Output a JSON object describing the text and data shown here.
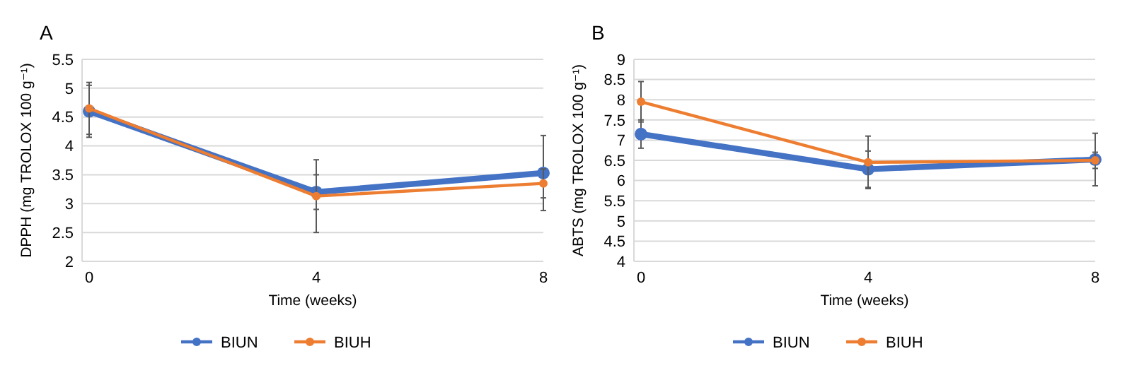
{
  "chart_data": [
    {
      "type": "line",
      "title": "A",
      "xlabel": "Time (weeks)",
      "ylabel": "DPPH (mg TROLOX 100 g⁻¹)",
      "categories": [
        "0",
        "4",
        "8"
      ],
      "ylim": [
        2,
        5.5
      ],
      "yticks": [
        2,
        2.5,
        3,
        3.5,
        4,
        4.5,
        5,
        5.5
      ],
      "grid": "y",
      "legend": "bottom",
      "marker": "circle",
      "series": [
        {
          "name": "BIUN",
          "color": "#4472c4",
          "values": [
            4.6,
            3.2,
            3.53
          ],
          "errors": [
            0.45,
            0.3,
            0.65
          ]
        },
        {
          "name": "BIUH",
          "color": "#ed7d31",
          "values": [
            4.65,
            3.13,
            3.35
          ],
          "errors": [
            0.45,
            0.63,
            0.25
          ]
        }
      ]
    },
    {
      "type": "line",
      "title": "B",
      "xlabel": "Time (weeks)",
      "ylabel": "ABTS (mg TROLOX 100 g⁻¹)",
      "categories": [
        "0",
        "4",
        "8"
      ],
      "ylim": [
        4,
        9
      ],
      "yticks": [
        4,
        4.5,
        5,
        5.5,
        6,
        6.5,
        7,
        7.5,
        8,
        8.5,
        9
      ],
      "grid": "y",
      "legend": "bottom",
      "marker": "circle",
      "series": [
        {
          "name": "BIUN",
          "color": "#4472c4",
          "values": [
            7.15,
            6.28,
            6.52
          ],
          "errors": [
            0.35,
            0.45,
            0.65
          ]
        },
        {
          "name": "BIUH",
          "color": "#ed7d31",
          "values": [
            7.95,
            6.45,
            6.5
          ],
          "errors": [
            0.5,
            0.65,
            0.2
          ]
        }
      ]
    }
  ]
}
